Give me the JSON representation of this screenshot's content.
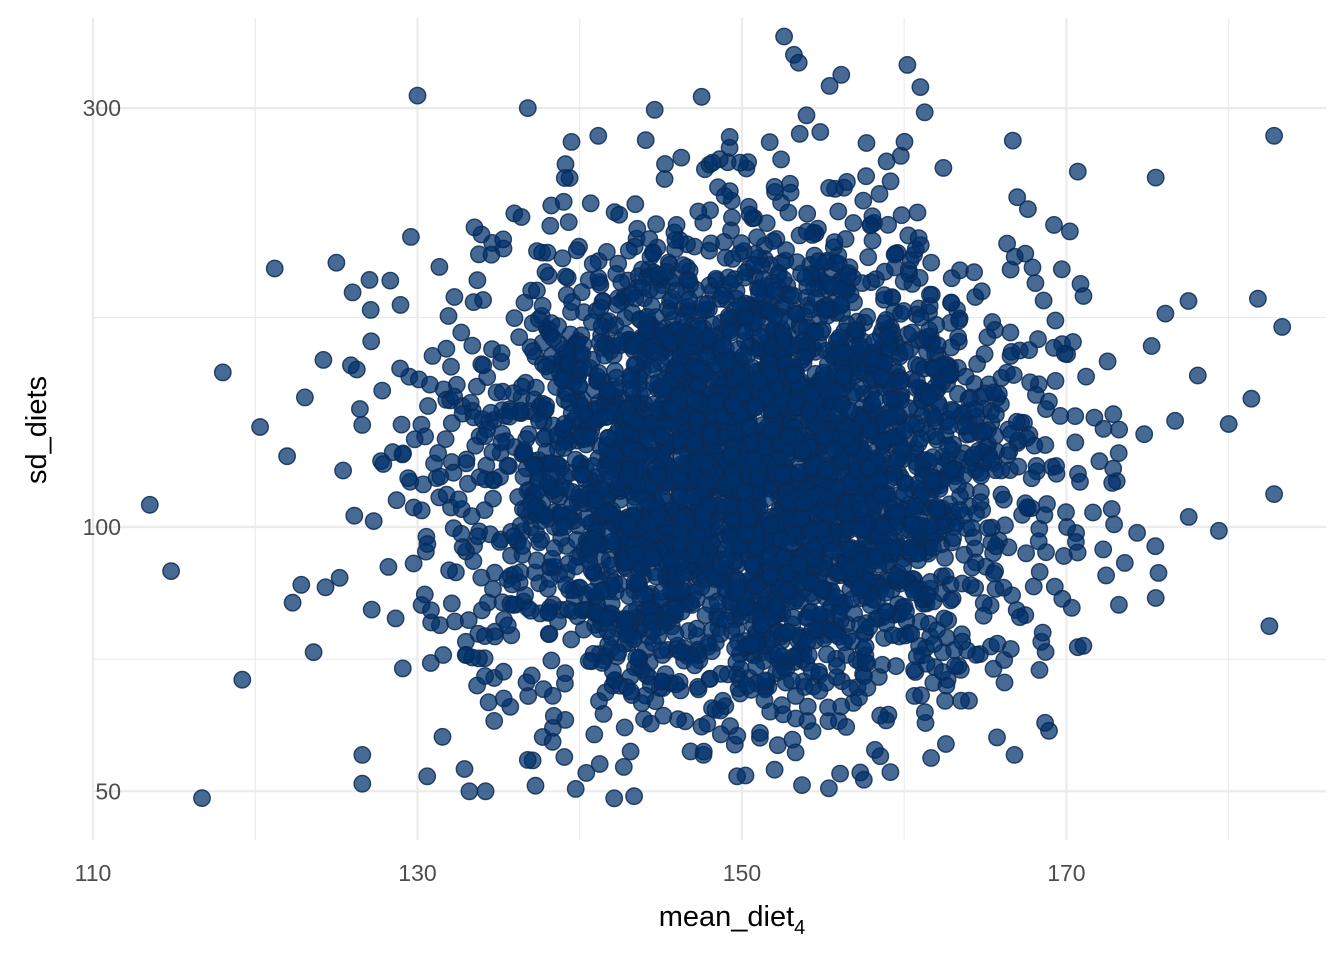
{
  "chart_data": {
    "type": "scatter",
    "title": "",
    "xlabel": "mean_diet",
    "xlabel_subscript": "4",
    "ylabel": "sd_diets",
    "y_scale": "log",
    "xlim": [
      110,
      186
    ],
    "ylim": [
      44,
      380
    ],
    "x_ticks": [
      110,
      130,
      150,
      170
    ],
    "x_tick_labels": [
      "110",
      "130",
      "150",
      "170"
    ],
    "x_minor_ticks": [
      120,
      140,
      160,
      180
    ],
    "y_ticks": [
      50,
      100,
      300
    ],
    "y_tick_labels": [
      "50",
      "100",
      "300"
    ],
    "y_minor_ticks": [
      70.7,
      173.2,
      387.3
    ],
    "grid": true,
    "legend": "none",
    "point_fill": "#00306B",
    "point_stroke": "#0A2A55",
    "point_opacity": 0.72,
    "n_points": 4000,
    "sample_distribution": {
      "x": {
        "center": 150.4,
        "sd": 8.6
      },
      "y_log": {
        "center_value": 117,
        "sd_log": 0.31
      }
    },
    "outliers": [
      {
        "x": 113.5,
        "y": 106
      },
      {
        "x": 118,
        "y": 150
      },
      {
        "x": 119.2,
        "y": 67
      },
      {
        "x": 120.3,
        "y": 130
      },
      {
        "x": 121.2,
        "y": 197
      },
      {
        "x": 122.3,
        "y": 82
      },
      {
        "x": 123.6,
        "y": 72
      },
      {
        "x": 124.2,
        "y": 155
      },
      {
        "x": 125,
        "y": 200
      },
      {
        "x": 126,
        "y": 185
      },
      {
        "x": 126.6,
        "y": 55
      },
      {
        "x": 126.6,
        "y": 51
      },
      {
        "x": 130,
        "y": 310
      },
      {
        "x": 130.6,
        "y": 52
      },
      {
        "x": 132.9,
        "y": 53
      },
      {
        "x": 133.2,
        "y": 50
      },
      {
        "x": 134.2,
        "y": 50
      },
      {
        "x": 136.8,
        "y": 300
      },
      {
        "x": 149.7,
        "y": 52
      },
      {
        "x": 152.6,
        "y": 362
      },
      {
        "x": 153.2,
        "y": 345
      },
      {
        "x": 153.5,
        "y": 338
      },
      {
        "x": 155.4,
        "y": 318
      },
      {
        "x": 160.2,
        "y": 336
      },
      {
        "x": 161,
        "y": 317
      },
      {
        "x": 166.8,
        "y": 55
      },
      {
        "x": 168.7,
        "y": 124
      },
      {
        "x": 170.7,
        "y": 254
      },
      {
        "x": 175.5,
        "y": 250
      },
      {
        "x": 175.5,
        "y": 83
      },
      {
        "x": 176.1,
        "y": 175
      },
      {
        "x": 179.4,
        "y": 99
      },
      {
        "x": 180,
        "y": 131
      },
      {
        "x": 181.4,
        "y": 140
      },
      {
        "x": 181.8,
        "y": 182
      },
      {
        "x": 182.8,
        "y": 279
      },
      {
        "x": 182.8,
        "y": 109
      },
      {
        "x": 183.3,
        "y": 169
      }
    ]
  }
}
